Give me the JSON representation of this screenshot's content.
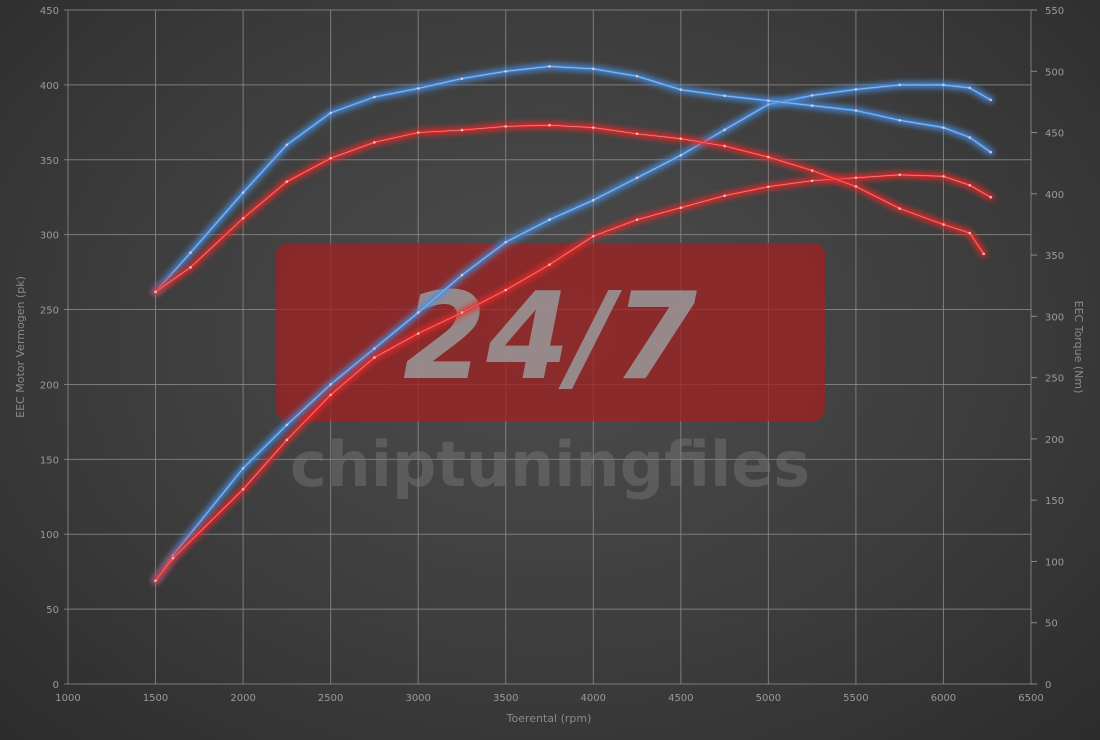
{
  "chart_data": {
    "type": "line",
    "title": "",
    "xlabel": "Toerental (rpm)",
    "ylabel_left": "EEC Motor Vermogen (pk)",
    "ylabel_right": "EEC Torque (Nm)",
    "xlim": [
      1000,
      6500
    ],
    "ylim_left": [
      0,
      450
    ],
    "ylim_right": [
      0,
      550
    ],
    "x_ticks": [
      1000,
      1500,
      2000,
      2500,
      3000,
      3500,
      4000,
      4500,
      5000,
      5500,
      6000,
      6500
    ],
    "y_left_ticks": [
      0,
      50,
      100,
      150,
      200,
      250,
      300,
      350,
      400,
      450
    ],
    "y_right_ticks": [
      0,
      50,
      100,
      150,
      200,
      250,
      300,
      350,
      400,
      450,
      500,
      550
    ],
    "grid": true,
    "colors": {
      "blue": "#4a90e2",
      "red": "#e52b2b",
      "grid": "#8c8c8c"
    },
    "series": [
      {
        "color": "blue",
        "axis": "left",
        "kind": "power",
        "x": [
          1500,
          1600,
          2000,
          2250,
          2500,
          2750,
          3000,
          3250,
          3500,
          3750,
          4000,
          4250,
          4500,
          4750,
          5000,
          5250,
          5500,
          5750,
          6000,
          6150,
          6270
        ],
        "y": [
          69,
          86,
          144,
          173,
          200,
          224,
          248,
          273,
          295,
          310,
          323,
          338,
          353,
          370,
          387,
          393,
          397,
          400,
          400,
          398,
          390
        ]
      },
      {
        "color": "red",
        "axis": "left",
        "kind": "power",
        "x": [
          1500,
          1600,
          2000,
          2250,
          2500,
          2750,
          3000,
          3250,
          3500,
          3750,
          4000,
          4250,
          4500,
          4750,
          5000,
          5250,
          5500,
          5750,
          6000,
          6150,
          6270
        ],
        "y": [
          69,
          84,
          130,
          163,
          193,
          218,
          234,
          248,
          263,
          280,
          299,
          310,
          318,
          326,
          332,
          336,
          338,
          340,
          339,
          333,
          325
        ]
      },
      {
        "color": "blue",
        "axis": "right",
        "kind": "torque",
        "x": [
          1500,
          1700,
          2000,
          2250,
          2500,
          2750,
          3000,
          3250,
          3500,
          3750,
          4000,
          4250,
          4500,
          4750,
          5000,
          5250,
          5500,
          5750,
          6000,
          6150,
          6270
        ],
        "y": [
          320,
          352,
          401,
          440,
          466,
          479,
          486,
          494,
          500,
          504,
          502,
          496,
          485,
          480,
          476,
          472,
          468,
          460,
          454,
          446,
          434
        ]
      },
      {
        "color": "red",
        "axis": "right",
        "kind": "torque",
        "x": [
          1500,
          1700,
          2000,
          2250,
          2500,
          2750,
          3000,
          3250,
          3500,
          3750,
          4000,
          4250,
          4500,
          4750,
          5000,
          5250,
          5500,
          5750,
          6000,
          6150,
          6230
        ],
        "y": [
          320,
          340,
          380,
          410,
          429,
          442,
          450,
          452,
          455,
          456,
          454,
          449,
          445,
          439,
          430,
          419,
          406,
          388,
          375,
          368,
          351
        ]
      }
    ]
  },
  "watermark": {
    "big": "24/7",
    "small": "chiptuningfiles",
    "box_color": "#a02020"
  }
}
